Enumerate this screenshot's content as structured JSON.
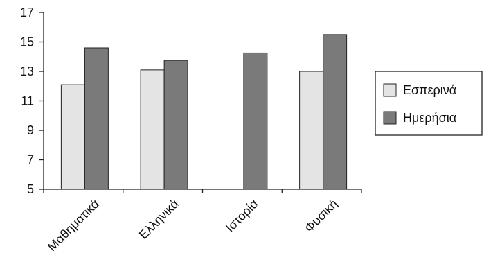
{
  "chart_data": {
    "type": "bar",
    "categories": [
      "Μαθηματικά",
      "Ελληνικά",
      "Ιστορία",
      "Φυσική"
    ],
    "series": [
      {
        "name": "Εσπερινά",
        "values": [
          12.1,
          13.1,
          null,
          13.0
        ],
        "color": "#e4e4e4"
      },
      {
        "name": "Ημερήσια",
        "values": [
          14.6,
          13.75,
          14.25,
          15.5
        ],
        "color": "#7a7a7a"
      }
    ],
    "title": "",
    "xlabel": "",
    "ylabel": "",
    "ylim": [
      5,
      17
    ],
    "yticks": [
      5,
      7,
      9,
      11,
      13,
      15,
      17
    ],
    "grid": false,
    "legend_position": "right"
  }
}
